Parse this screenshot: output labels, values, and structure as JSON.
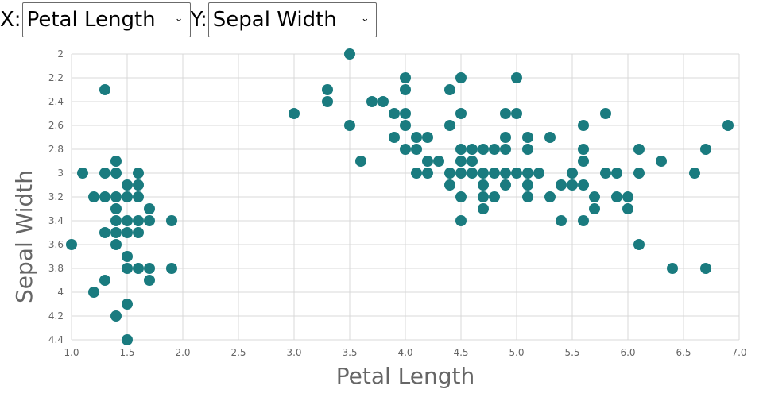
{
  "controls": {
    "x_label": "X:",
    "y_label": "Y:",
    "x_selected": "Petal Length",
    "y_selected": "Sepal Width"
  },
  "colors": {
    "point": "#1a7b7f",
    "grid": "#d9d9d9",
    "text": "#666666"
  },
  "chart_data": {
    "type": "scatter",
    "xlabel": "Petal Length",
    "ylabel": "Sepal Width",
    "xlim": [
      1.0,
      7.0
    ],
    "ylim": [
      2.0,
      4.4
    ],
    "y_reversed": true,
    "grid": true,
    "x_ticks": [
      "1.0",
      "1.5",
      "2.0",
      "2.5",
      "3.0",
      "3.5",
      "4.0",
      "4.5",
      "5.0",
      "5.5",
      "6.0",
      "6.5",
      "7.0"
    ],
    "y_ticks": [
      "2",
      "2.2",
      "2.4",
      "2.6",
      "2.8",
      "3",
      "3.2",
      "3.4",
      "3.6",
      "3.8",
      "4",
      "4.2",
      "4.4"
    ],
    "points": [
      [
        1.0,
        3.6
      ],
      [
        1.1,
        3.0
      ],
      [
        1.2,
        3.2
      ],
      [
        1.2,
        4.0
      ],
      [
        1.3,
        2.3
      ],
      [
        1.3,
        3.0
      ],
      [
        1.3,
        3.2
      ],
      [
        1.3,
        3.5
      ],
      [
        1.3,
        3.9
      ],
      [
        1.4,
        2.9
      ],
      [
        1.4,
        3.0
      ],
      [
        1.4,
        3.2
      ],
      [
        1.4,
        3.3
      ],
      [
        1.4,
        3.4
      ],
      [
        1.4,
        3.5
      ],
      [
        1.4,
        3.6
      ],
      [
        1.4,
        4.2
      ],
      [
        1.5,
        3.1
      ],
      [
        1.5,
        3.2
      ],
      [
        1.5,
        3.4
      ],
      [
        1.5,
        3.5
      ],
      [
        1.5,
        3.7
      ],
      [
        1.5,
        3.8
      ],
      [
        1.5,
        4.1
      ],
      [
        1.5,
        4.4
      ],
      [
        1.6,
        3.0
      ],
      [
        1.6,
        3.1
      ],
      [
        1.6,
        3.2
      ],
      [
        1.6,
        3.4
      ],
      [
        1.6,
        3.5
      ],
      [
        1.6,
        3.8
      ],
      [
        1.7,
        3.3
      ],
      [
        1.7,
        3.4
      ],
      [
        1.7,
        3.8
      ],
      [
        1.7,
        3.9
      ],
      [
        1.9,
        3.4
      ],
      [
        1.9,
        3.8
      ],
      [
        3.0,
        2.5
      ],
      [
        3.3,
        2.3
      ],
      [
        3.3,
        2.4
      ],
      [
        3.5,
        2.0
      ],
      [
        3.5,
        2.6
      ],
      [
        3.6,
        2.9
      ],
      [
        3.7,
        2.4
      ],
      [
        3.8,
        2.4
      ],
      [
        3.9,
        2.5
      ],
      [
        3.9,
        2.7
      ],
      [
        4.0,
        2.2
      ],
      [
        4.0,
        2.3
      ],
      [
        4.0,
        2.5
      ],
      [
        4.0,
        2.6
      ],
      [
        4.0,
        2.8
      ],
      [
        4.1,
        2.7
      ],
      [
        4.1,
        2.8
      ],
      [
        4.1,
        3.0
      ],
      [
        4.2,
        2.7
      ],
      [
        4.2,
        2.9
      ],
      [
        4.2,
        3.0
      ],
      [
        4.3,
        2.9
      ],
      [
        4.4,
        2.3
      ],
      [
        4.4,
        2.6
      ],
      [
        4.4,
        3.0
      ],
      [
        4.4,
        3.1
      ],
      [
        4.5,
        2.2
      ],
      [
        4.5,
        2.5
      ],
      [
        4.5,
        2.8
      ],
      [
        4.5,
        2.9
      ],
      [
        4.5,
        3.0
      ],
      [
        4.5,
        3.2
      ],
      [
        4.5,
        3.4
      ],
      [
        4.6,
        2.8
      ],
      [
        4.6,
        2.9
      ],
      [
        4.6,
        3.0
      ],
      [
        4.7,
        2.8
      ],
      [
        4.7,
        3.0
      ],
      [
        4.7,
        3.1
      ],
      [
        4.7,
        3.2
      ],
      [
        4.7,
        3.3
      ],
      [
        4.8,
        2.8
      ],
      [
        4.8,
        3.0
      ],
      [
        4.8,
        3.2
      ],
      [
        4.9,
        2.5
      ],
      [
        4.9,
        2.7
      ],
      [
        4.9,
        2.8
      ],
      [
        4.9,
        3.0
      ],
      [
        4.9,
        3.1
      ],
      [
        5.0,
        2.2
      ],
      [
        5.0,
        2.5
      ],
      [
        5.0,
        3.0
      ],
      [
        5.1,
        2.7
      ],
      [
        5.1,
        2.8
      ],
      [
        5.1,
        3.0
      ],
      [
        5.1,
        3.1
      ],
      [
        5.1,
        3.2
      ],
      [
        5.2,
        3.0
      ],
      [
        5.3,
        2.7
      ],
      [
        5.3,
        3.2
      ],
      [
        5.4,
        3.1
      ],
      [
        5.4,
        3.4
      ],
      [
        5.5,
        3.0
      ],
      [
        5.5,
        3.1
      ],
      [
        5.6,
        2.6
      ],
      [
        5.6,
        2.8
      ],
      [
        5.6,
        2.9
      ],
      [
        5.6,
        3.1
      ],
      [
        5.6,
        3.4
      ],
      [
        5.7,
        3.2
      ],
      [
        5.7,
        3.3
      ],
      [
        5.8,
        2.5
      ],
      [
        5.8,
        3.0
      ],
      [
        5.9,
        3.0
      ],
      [
        5.9,
        3.2
      ],
      [
        6.0,
        3.2
      ],
      [
        6.0,
        3.3
      ],
      [
        6.1,
        2.8
      ],
      [
        6.1,
        3.0
      ],
      [
        6.1,
        3.6
      ],
      [
        6.3,
        2.9
      ],
      [
        6.4,
        3.8
      ],
      [
        6.6,
        3.0
      ],
      [
        6.7,
        2.8
      ],
      [
        6.7,
        3.8
      ],
      [
        6.9,
        2.6
      ]
    ]
  }
}
